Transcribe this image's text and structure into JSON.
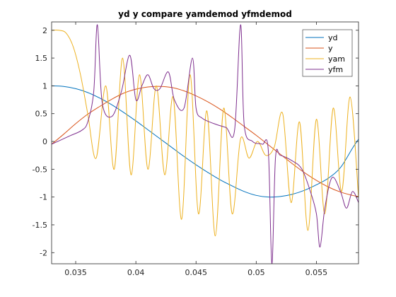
{
  "chart_data": {
    "type": "line",
    "title": "yd y compare yamdemod yfmdemod",
    "xlabel": "",
    "ylabel": "",
    "xlim": [
      0.033,
      0.0585
    ],
    "ylim": [
      -2.2,
      2.15
    ],
    "x_ticks": [
      0.035,
      0.04,
      0.045,
      0.05,
      0.055
    ],
    "x_tick_labels": [
      "0.035",
      "0.04",
      "0.045",
      "0.05",
      "0.055"
    ],
    "y_ticks": [
      -2,
      -1.5,
      -1,
      -0.5,
      0,
      0.5,
      1,
      1.5,
      2
    ],
    "y_tick_labels": [
      "-2",
      "-1.5",
      "-1",
      "-0.5",
      "0",
      "0.5",
      "1",
      "1.5",
      "2"
    ],
    "grid": false,
    "legend_position": "top-right",
    "series": [
      {
        "name": "yd",
        "color": "#0072BD",
        "x": [
          0.033,
          0.034,
          0.035,
          0.036,
          0.037,
          0.038,
          0.039,
          0.04,
          0.041,
          0.042,
          0.043,
          0.044,
          0.045,
          0.046,
          0.047,
          0.048,
          0.049,
          0.05,
          0.051,
          0.052,
          0.053,
          0.054,
          0.055,
          0.056,
          0.057,
          0.058,
          0.0585
        ],
        "y": [
          1.0,
          0.99,
          0.95,
          0.88,
          0.78,
          0.66,
          0.52,
          0.37,
          0.21,
          0.05,
          -0.11,
          -0.27,
          -0.42,
          -0.56,
          -0.69,
          -0.8,
          -0.9,
          -0.97,
          -1.0,
          -0.99,
          -0.95,
          -0.88,
          -0.78,
          -0.66,
          -0.47,
          -0.12,
          0.04
        ]
      },
      {
        "name": "y",
        "color": "#D95319",
        "x": [
          0.033,
          0.034,
          0.035,
          0.036,
          0.037,
          0.038,
          0.039,
          0.04,
          0.041,
          0.042,
          0.043,
          0.044,
          0.045,
          0.046,
          0.047,
          0.048,
          0.049,
          0.05,
          0.051,
          0.052,
          0.053,
          0.054,
          0.055,
          0.056,
          0.057,
          0.058,
          0.0585
        ],
        "y": [
          -0.05,
          0.13,
          0.32,
          0.49,
          0.63,
          0.76,
          0.87,
          0.94,
          0.98,
          0.99,
          0.97,
          0.91,
          0.82,
          0.71,
          0.58,
          0.43,
          0.27,
          0.11,
          -0.06,
          -0.23,
          -0.4,
          -0.56,
          -0.7,
          -0.82,
          -0.91,
          -0.97,
          -0.99
        ]
      },
      {
        "name": "yam",
        "color": "#EDB120",
        "x": [
          0.033,
          0.0336,
          0.0342,
          0.0348,
          0.0354,
          0.036,
          0.0367,
          0.0375,
          0.0382,
          0.0389,
          0.0396,
          0.0403,
          0.041,
          0.0417,
          0.0424,
          0.0431,
          0.0438,
          0.0445,
          0.0452,
          0.0459,
          0.0466,
          0.0473,
          0.048,
          0.0487,
          0.0494,
          0.0501,
          0.0508,
          0.0515,
          0.0522,
          0.0529,
          0.0536,
          0.0543,
          0.055,
          0.0557,
          0.0564,
          0.0571,
          0.0578,
          0.0585
        ],
        "y": [
          2.0,
          2.0,
          1.95,
          1.7,
          1.2,
          0.5,
          -0.3,
          1.0,
          -0.5,
          1.5,
          -0.6,
          1.2,
          -0.5,
          1.0,
          -0.6,
          0.8,
          -1.4,
          1.2,
          -1.3,
          0.55,
          -1.7,
          0.6,
          -1.3,
          0.05,
          -0.3,
          0.0,
          -0.25,
          -0.1,
          0.5,
          -1.1,
          0.35,
          -1.6,
          0.4,
          -1.3,
          0.6,
          -0.9,
          0.8,
          -1.0
        ]
      },
      {
        "name": "yfm",
        "color": "#7E2F8E",
        "x": [
          0.033,
          0.0345,
          0.0355,
          0.036,
          0.0365,
          0.0368,
          0.0372,
          0.038,
          0.0388,
          0.0395,
          0.04,
          0.0405,
          0.041,
          0.0415,
          0.042,
          0.0427,
          0.0432,
          0.044,
          0.0447,
          0.045,
          0.0455,
          0.0465,
          0.0475,
          0.0482,
          0.0487,
          0.049,
          0.0497,
          0.0505,
          0.051,
          0.0513,
          0.0516,
          0.052,
          0.053,
          0.0538,
          0.0545,
          0.055,
          0.0553,
          0.0557,
          0.0563,
          0.057,
          0.0575,
          0.058,
          0.0585
        ],
        "y": [
          -0.05,
          0.1,
          0.2,
          0.35,
          0.9,
          2.1,
          0.7,
          0.45,
          0.9,
          1.55,
          0.75,
          1.0,
          1.2,
          0.95,
          0.95,
          1.25,
          0.75,
          0.6,
          1.5,
          0.6,
          0.42,
          0.32,
          0.25,
          0.2,
          2.1,
          0.3,
          0.0,
          -0.05,
          -0.15,
          -2.2,
          -0.3,
          -0.25,
          -0.35,
          -0.5,
          -0.9,
          -1.3,
          -1.9,
          -1.2,
          -0.65,
          -0.9,
          -1.2,
          -0.9,
          -1.1
        ]
      }
    ]
  }
}
